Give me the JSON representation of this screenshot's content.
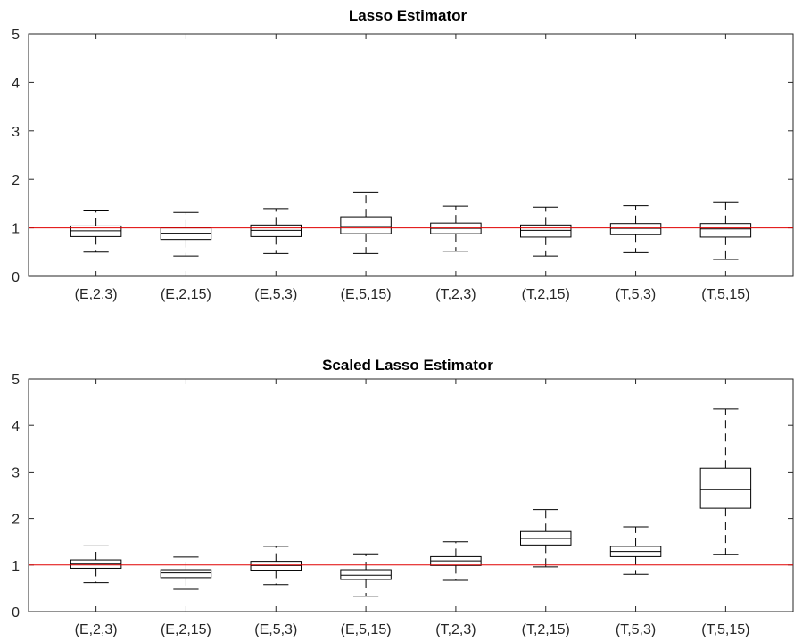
{
  "colors": {
    "box": "#000000",
    "whisker": "#000000",
    "median": "#000000",
    "reference_line": "#e00000",
    "axis": "#262626",
    "background": "#ffffff"
  },
  "chart_data": [
    {
      "type": "box",
      "title": "Lasso Estimator",
      "xlabel": "",
      "ylabel": "",
      "ylim": [
        0,
        5
      ],
      "yticks": [
        0,
        1,
        2,
        3,
        4,
        5
      ],
      "grid": false,
      "reference_line": 1,
      "categories": [
        "(E,2,3)",
        "(E,2,15)",
        "(E,5,3)",
        "(E,5,15)",
        "(T,2,3)",
        "(T,2,15)",
        "(T,5,3)",
        "(T,5,15)"
      ],
      "boxes": [
        {
          "whisker_low": 0.5,
          "q1": 0.82,
          "median": 0.94,
          "q3": 1.04,
          "whisker_high": 1.35
        },
        {
          "whisker_low": 0.42,
          "q1": 0.76,
          "median": 0.89,
          "q3": 1.0,
          "whisker_high": 1.32
        },
        {
          "whisker_low": 0.47,
          "q1": 0.82,
          "median": 0.95,
          "q3": 1.06,
          "whisker_high": 1.4
        },
        {
          "whisker_low": 0.47,
          "q1": 0.88,
          "median": 1.03,
          "q3": 1.23,
          "whisker_high": 1.74
        },
        {
          "whisker_low": 0.52,
          "q1": 0.88,
          "median": 0.99,
          "q3": 1.1,
          "whisker_high": 1.45
        },
        {
          "whisker_low": 0.42,
          "q1": 0.81,
          "median": 0.95,
          "q3": 1.06,
          "whisker_high": 1.43
        },
        {
          "whisker_low": 0.49,
          "q1": 0.86,
          "median": 0.99,
          "q3": 1.09,
          "whisker_high": 1.46
        },
        {
          "whisker_low": 0.35,
          "q1": 0.81,
          "median": 0.98,
          "q3": 1.09,
          "whisker_high": 1.52
        }
      ]
    },
    {
      "type": "box",
      "title": "Scaled Lasso Estimator",
      "xlabel": "",
      "ylabel": "",
      "ylim": [
        0,
        5
      ],
      "yticks": [
        0,
        1,
        2,
        3,
        4,
        5
      ],
      "grid": false,
      "reference_line": 1,
      "categories": [
        "(E,2,3)",
        "(E,2,15)",
        "(E,5,3)",
        "(E,5,15)",
        "(T,2,3)",
        "(T,2,15)",
        "(T,5,3)",
        "(T,5,15)"
      ],
      "boxes": [
        {
          "whisker_low": 0.62,
          "q1": 0.93,
          "median": 1.02,
          "q3": 1.11,
          "whisker_high": 1.41
        },
        {
          "whisker_low": 0.48,
          "q1": 0.73,
          "median": 0.83,
          "q3": 0.9,
          "whisker_high": 1.17
        },
        {
          "whisker_low": 0.58,
          "q1": 0.89,
          "median": 0.99,
          "q3": 1.08,
          "whisker_high": 1.4
        },
        {
          "whisker_low": 0.33,
          "q1": 0.69,
          "median": 0.78,
          "q3": 0.9,
          "whisker_high": 1.24
        },
        {
          "whisker_low": 0.67,
          "q1": 0.99,
          "median": 1.09,
          "q3": 1.18,
          "whisker_high": 1.5
        },
        {
          "whisker_low": 0.96,
          "q1": 1.43,
          "median": 1.57,
          "q3": 1.72,
          "whisker_high": 2.19
        },
        {
          "whisker_low": 0.8,
          "q1": 1.18,
          "median": 1.29,
          "q3": 1.4,
          "whisker_high": 1.82
        },
        {
          "whisker_low": 1.23,
          "q1": 2.22,
          "median": 2.62,
          "q3": 3.08,
          "whisker_high": 4.35
        }
      ]
    }
  ]
}
